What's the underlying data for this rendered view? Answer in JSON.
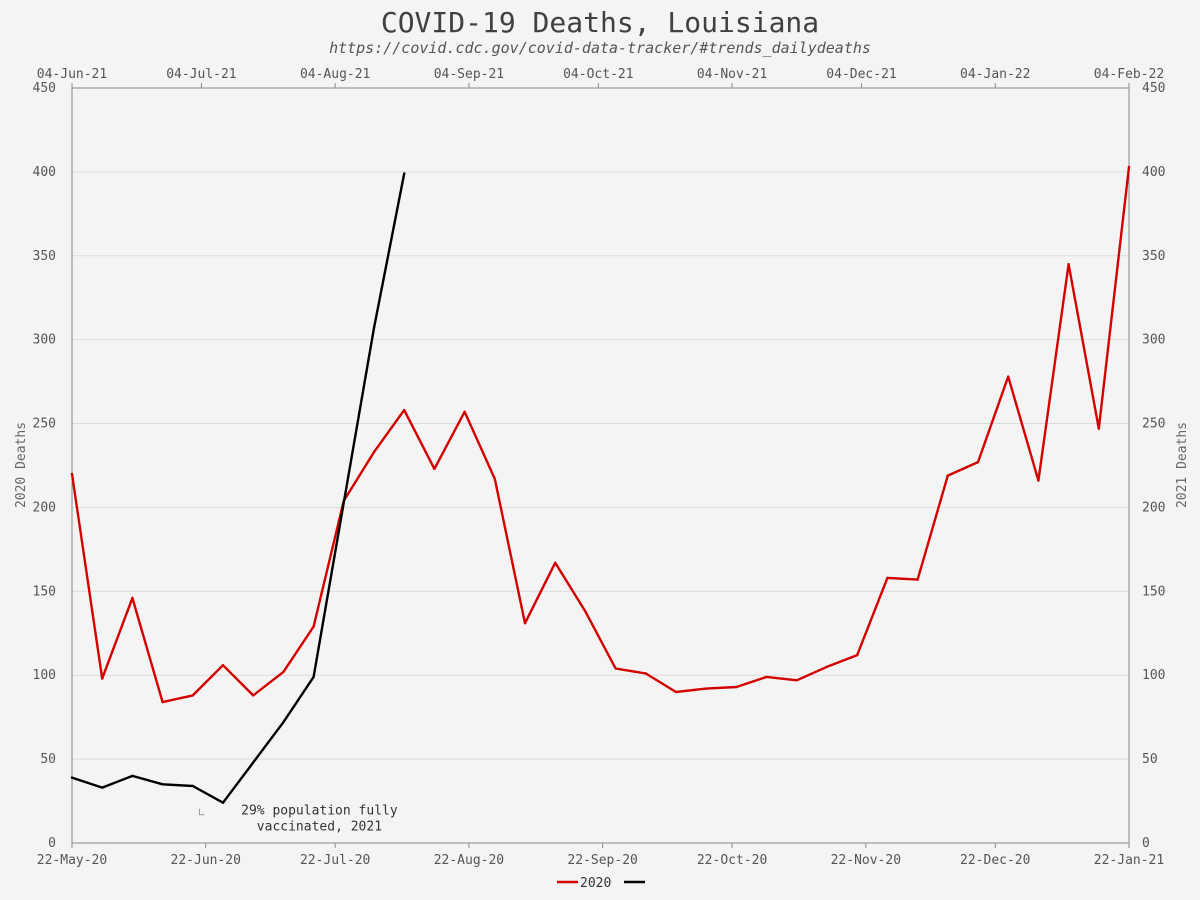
{
  "chart_data": {
    "type": "line",
    "title": "COVID-19 Deaths, Louisiana",
    "subtitle": "https://covid.cdc.gov/covid-data-tracker/#trends_dailydeaths",
    "ylabel_left": "2020 Deaths",
    "ylabel_right": "2021 Deaths",
    "ylim": [
      0,
      450
    ],
    "y_ticks": [
      0,
      50,
      100,
      150,
      200,
      250,
      300,
      350,
      400,
      450
    ],
    "grid": true,
    "legend_position": "bottom-center",
    "bottom_axis_ticks": [
      "22-May-20",
      "22-Jun-20",
      "22-Jul-20",
      "22-Aug-20",
      "22-Sep-20",
      "22-Oct-20",
      "22-Nov-20",
      "22-Dec-20",
      "22-Jan-21"
    ],
    "top_axis_ticks": [
      "04-Jun-21",
      "04-Jul-21",
      "04-Aug-21",
      "04-Sep-21",
      "04-Oct-21",
      "04-Nov-21",
      "04-Dec-21",
      "04-Jan-22",
      "04-Feb-22"
    ],
    "annotation": {
      "lines": [
        "29% population fully",
        "vaccinated, 2021"
      ],
      "date": "2021-07-04",
      "value": 24
    },
    "series": [
      {
        "name": "2020",
        "axis": "bottom",
        "color": "#d40000",
        "points": [
          {
            "x": "2020-05-22",
            "y": 220
          },
          {
            "x": "2020-05-29",
            "y": 98
          },
          {
            "x": "2020-06-05",
            "y": 146
          },
          {
            "x": "2020-06-12",
            "y": 84
          },
          {
            "x": "2020-06-19",
            "y": 88
          },
          {
            "x": "2020-06-26",
            "y": 106
          },
          {
            "x": "2020-07-03",
            "y": 88
          },
          {
            "x": "2020-07-10",
            "y": 102
          },
          {
            "x": "2020-07-17",
            "y": 129
          },
          {
            "x": "2020-07-24",
            "y": 204
          },
          {
            "x": "2020-07-31",
            "y": 233
          },
          {
            "x": "2020-08-07",
            "y": 258
          },
          {
            "x": "2020-08-14",
            "y": 223
          },
          {
            "x": "2020-08-21",
            "y": 257
          },
          {
            "x": "2020-08-28",
            "y": 217
          },
          {
            "x": "2020-09-04",
            "y": 131
          },
          {
            "x": "2020-09-11",
            "y": 167
          },
          {
            "x": "2020-09-18",
            "y": 138
          },
          {
            "x": "2020-09-25",
            "y": 104
          },
          {
            "x": "2020-10-02",
            "y": 101
          },
          {
            "x": "2020-10-09",
            "y": 90
          },
          {
            "x": "2020-10-16",
            "y": 92
          },
          {
            "x": "2020-10-23",
            "y": 93
          },
          {
            "x": "2020-10-30",
            "y": 99
          },
          {
            "x": "2020-11-06",
            "y": 97
          },
          {
            "x": "2020-11-13",
            "y": 105
          },
          {
            "x": "2020-11-20",
            "y": 112
          },
          {
            "x": "2020-11-27",
            "y": 158
          },
          {
            "x": "2020-12-04",
            "y": 157
          },
          {
            "x": "2020-12-11",
            "y": 219
          },
          {
            "x": "2020-12-18",
            "y": 227
          },
          {
            "x": "2020-12-25",
            "y": 278
          },
          {
            "x": "2021-01-01",
            "y": 216
          },
          {
            "x": "2021-01-08",
            "y": 345
          },
          {
            "x": "2021-01-15",
            "y": 247
          },
          {
            "x": "2021-01-22",
            "y": 403
          }
        ]
      },
      {
        "name": "",
        "axis": "top",
        "color": "#000000",
        "points": [
          {
            "x": "2021-06-04",
            "y": 39
          },
          {
            "x": "2021-06-11",
            "y": 33
          },
          {
            "x": "2021-06-18",
            "y": 40
          },
          {
            "x": "2021-06-25",
            "y": 35
          },
          {
            "x": "2021-07-02",
            "y": 34
          },
          {
            "x": "2021-07-09",
            "y": 24
          },
          {
            "x": "2021-07-16",
            "y": 48
          },
          {
            "x": "2021-07-23",
            "y": 72
          },
          {
            "x": "2021-07-30",
            "y": 99
          },
          {
            "x": "2021-08-06",
            "y": 203
          },
          {
            "x": "2021-08-13",
            "y": 307
          },
          {
            "x": "2021-08-20",
            "y": 399
          }
        ]
      }
    ]
  }
}
